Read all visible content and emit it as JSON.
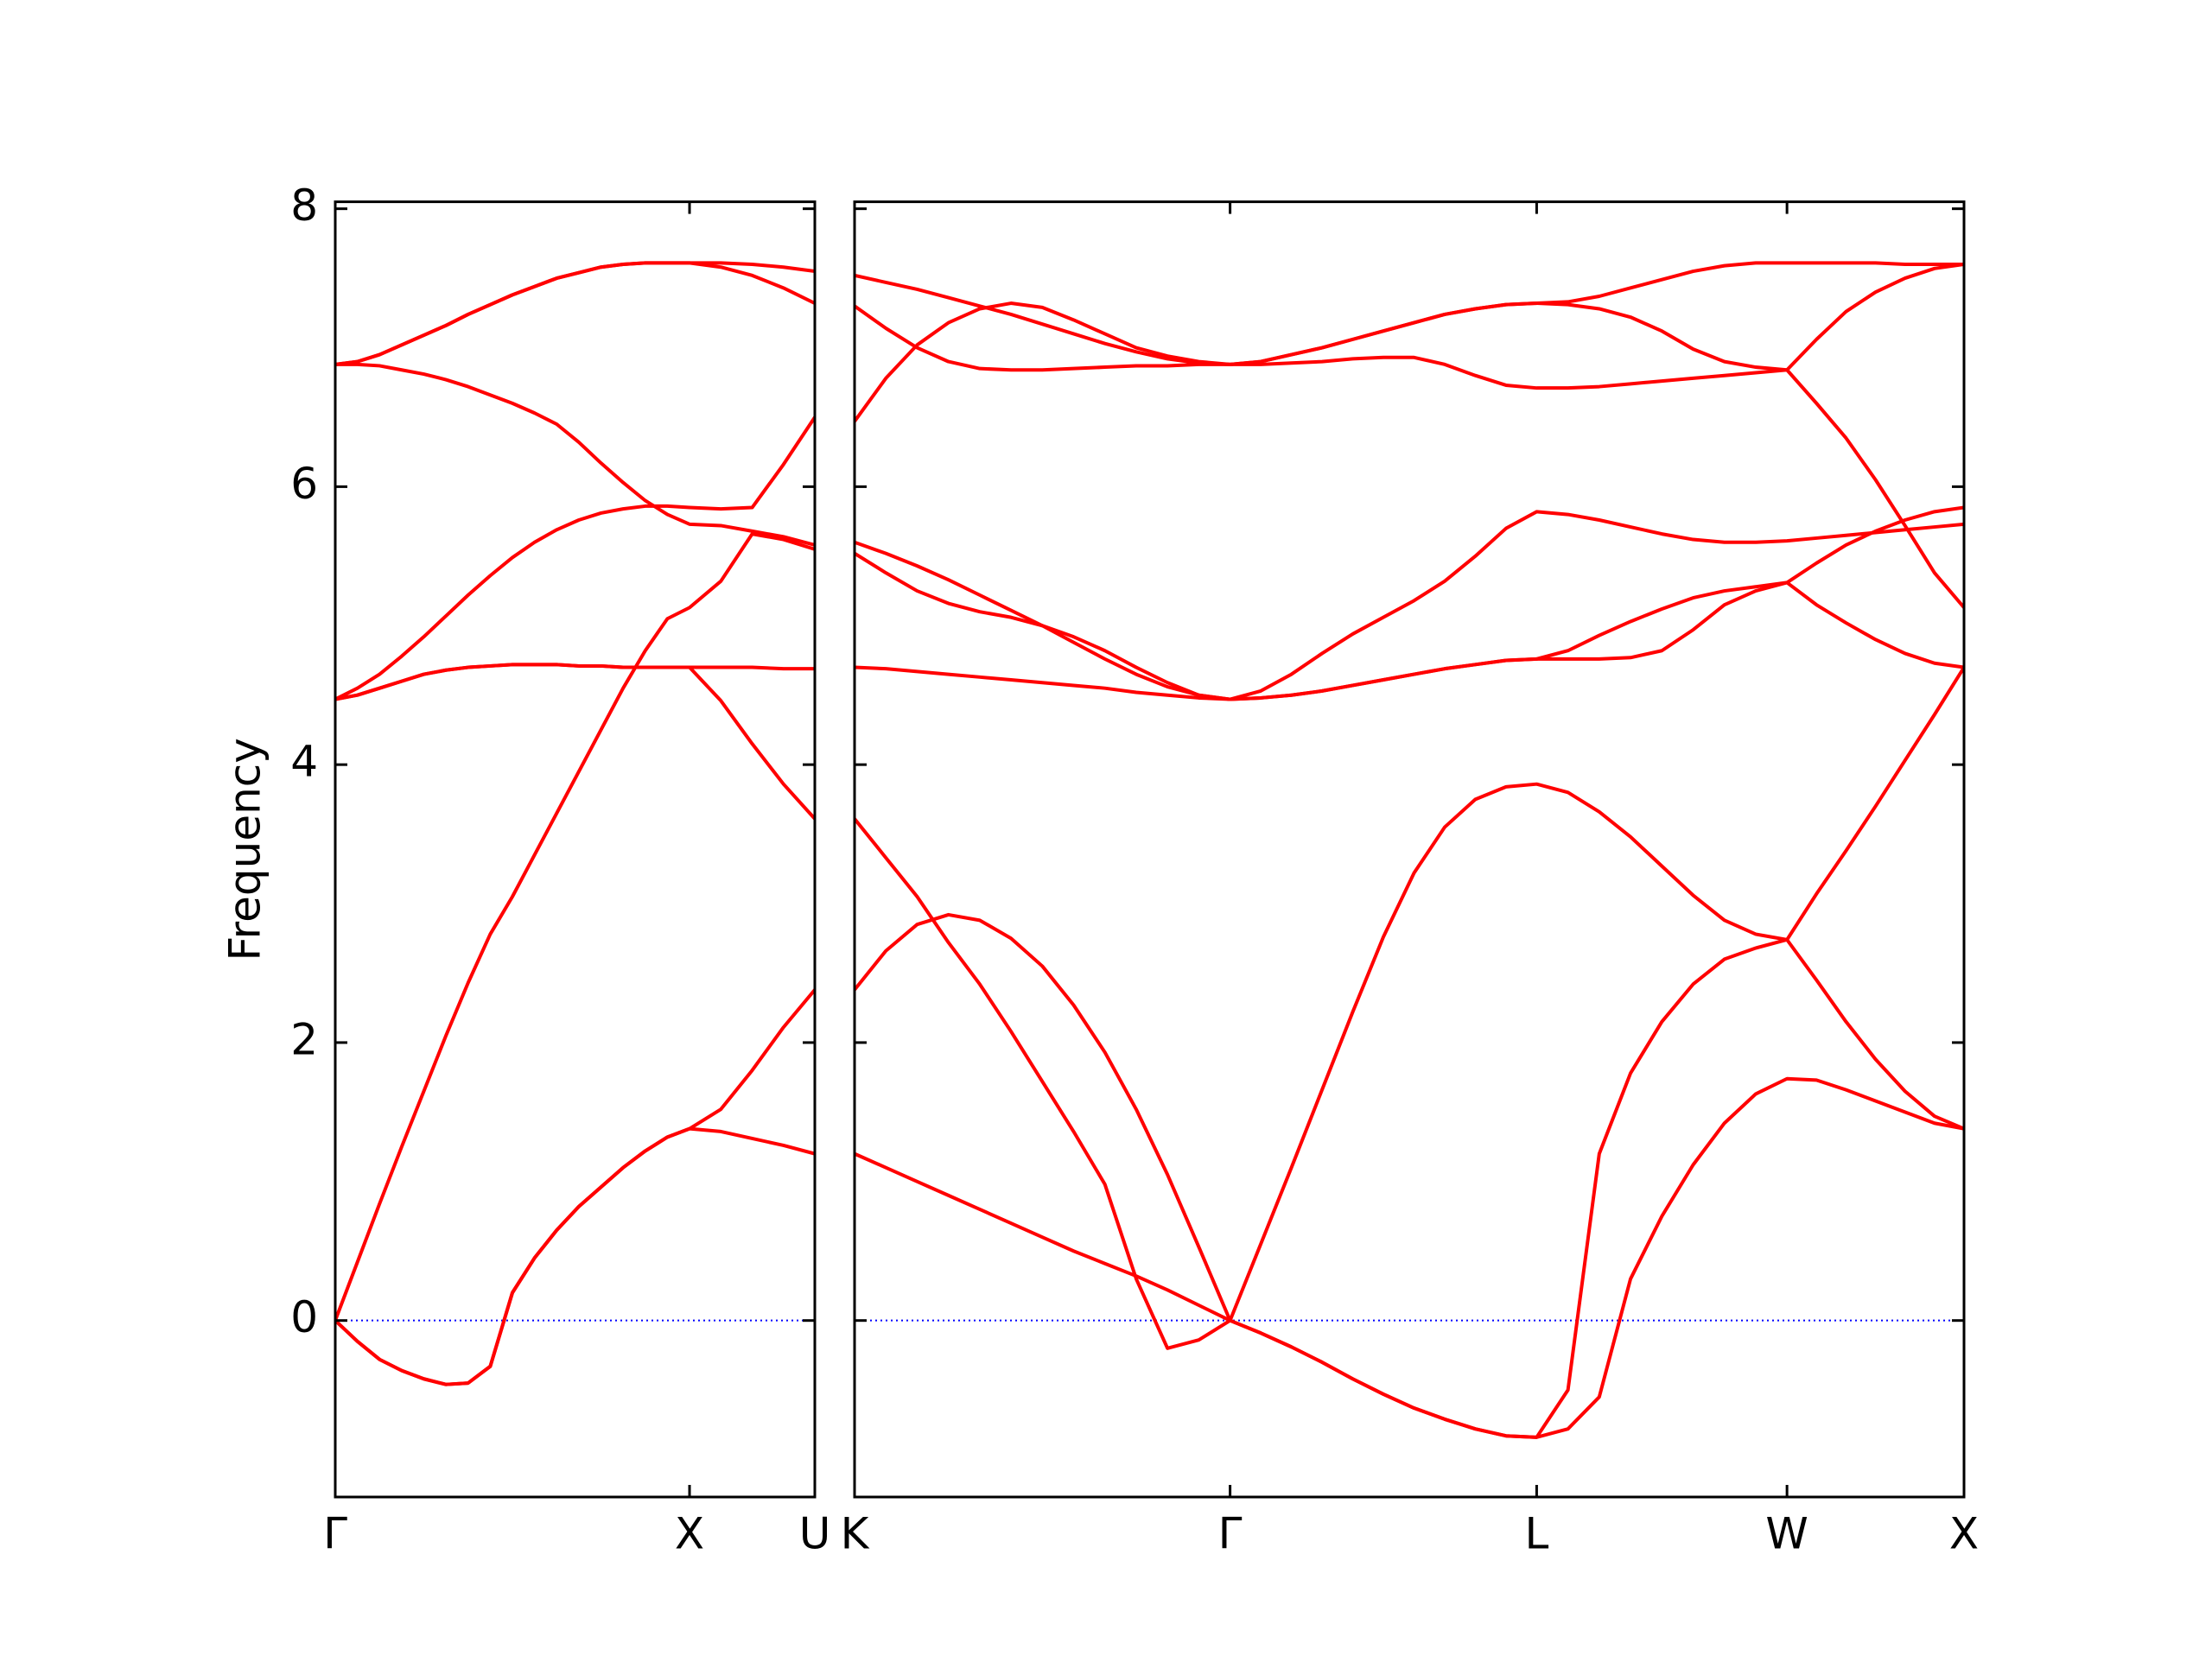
{
  "chart_data": [
    {
      "type": "line",
      "ylabel": "Frequency",
      "color": "#ff0000",
      "xlim": [
        0,
        1.3536
      ],
      "ylim": [
        -1.27,
        8.05
      ],
      "yticks": [
        0,
        2,
        4,
        6,
        8
      ],
      "show_ytick_labels": true,
      "xticks": [
        {
          "value": 0,
          "label": "Γ"
        },
        {
          "value": 1,
          "label": "X"
        },
        {
          "value": 1.3536,
          "label": "U"
        }
      ],
      "hline": {
        "y": 0,
        "color": "#0000ff"
      },
      "x": [
        0,
        0.0625,
        0.125,
        0.1875,
        0.25,
        0.3125,
        0.375,
        0.4375,
        0.5,
        0.5625,
        0.625,
        0.6875,
        0.75,
        0.8125,
        0.875,
        0.9375,
        1,
        1.0884,
        1.1768,
        1.2652,
        1.3536
      ],
      "series": [
        {
          "values": [
            0,
            -0.15,
            -0.28,
            -0.36,
            -0.42,
            -0.46,
            -0.45,
            -0.33,
            0.2,
            0.45,
            0.65,
            0.82,
            0.96,
            1.1,
            1.22,
            1.32,
            1.38,
            1.36,
            1.31,
            1.26,
            1.2
          ]
        },
        {
          "values": [
            0,
            -0.15,
            -0.28,
            -0.36,
            -0.42,
            -0.46,
            -0.45,
            -0.33,
            0.2,
            0.45,
            0.65,
            0.82,
            0.96,
            1.1,
            1.22,
            1.32,
            1.38,
            1.52,
            1.8,
            2.11,
            2.38
          ]
        },
        {
          "values": [
            0,
            0.42,
            0.84,
            1.25,
            1.65,
            2.05,
            2.43,
            2.78,
            3.05,
            3.35,
            3.65,
            3.95,
            4.25,
            4.55,
            4.82,
            5.05,
            5.13,
            5.32,
            5.66,
            5.62,
            5.55
          ]
        },
        {
          "values": [
            4.47,
            4.5,
            4.55,
            4.6,
            4.65,
            4.68,
            4.7,
            4.71,
            4.72,
            4.72,
            4.72,
            4.71,
            4.71,
            4.7,
            4.7,
            4.7,
            4.7,
            4.7,
            4.7,
            4.69,
            4.69
          ]
        },
        {
          "values": [
            4.47,
            4.5,
            4.55,
            4.6,
            4.65,
            4.68,
            4.7,
            4.71,
            4.72,
            4.72,
            4.72,
            4.71,
            4.71,
            4.7,
            4.7,
            4.7,
            4.7,
            4.46,
            4.15,
            3.86,
            3.61
          ]
        },
        {
          "values": [
            4.47,
            4.55,
            4.65,
            4.78,
            4.92,
            5.07,
            5.22,
            5.36,
            5.49,
            5.6,
            5.69,
            5.76,
            5.81,
            5.84,
            5.86,
            5.86,
            5.85,
            5.84,
            5.85,
            6.16,
            6.5
          ]
        },
        {
          "values": [
            6.88,
            6.88,
            6.87,
            6.84,
            6.81,
            6.77,
            6.72,
            6.66,
            6.6,
            6.53,
            6.45,
            6.32,
            6.17,
            6.03,
            5.9,
            5.8,
            5.73,
            5.72,
            5.68,
            5.64,
            5.58
          ]
        },
        {
          "values": [
            6.88,
            6.9,
            6.95,
            7.02,
            7.09,
            7.16,
            7.24,
            7.31,
            7.38,
            7.44,
            7.5,
            7.54,
            7.58,
            7.6,
            7.61,
            7.61,
            7.61,
            7.61,
            7.6,
            7.58,
            7.55
          ]
        },
        {
          "values": [
            6.88,
            6.9,
            6.95,
            7.02,
            7.09,
            7.16,
            7.24,
            7.31,
            7.38,
            7.44,
            7.5,
            7.54,
            7.58,
            7.6,
            7.61,
            7.61,
            7.61,
            7.58,
            7.52,
            7.43,
            7.32
          ]
        }
      ]
    },
    {
      "type": "line",
      "color": "#ff0000",
      "xlim": [
        0,
        3.1338
      ],
      "ylim": [
        -1.27,
        8.05
      ],
      "yticks": [
        0,
        2,
        4,
        6,
        8
      ],
      "show_ytick_labels": false,
      "xticks": [
        {
          "value": 0,
          "label": "K"
        },
        {
          "value": 1.0607,
          "label": "Γ"
        },
        {
          "value": 1.9267,
          "label": "L"
        },
        {
          "value": 2.6338,
          "label": "W"
        },
        {
          "value": 3.1338,
          "label": "X"
        }
      ],
      "hline": {
        "y": 0,
        "color": "#0000ff"
      },
      "x": [
        0,
        0.0884,
        0.1768,
        0.2652,
        0.3536,
        0.4419,
        0.5303,
        0.6187,
        0.7071,
        0.7955,
        0.8839,
        0.9723,
        1.0607,
        1.1473,
        1.2339,
        1.3205,
        1.4071,
        1.4937,
        1.5803,
        1.6669,
        1.7535,
        1.8401,
        1.9267,
        2.0151,
        2.1035,
        2.1919,
        2.2803,
        2.3686,
        2.457,
        2.5454,
        2.6338,
        2.7171,
        2.8005,
        2.8838,
        2.9671,
        3.0505,
        3.1338
      ],
      "series": [
        {
          "values": [
            1.2,
            1.1,
            1.0,
            0.9,
            0.8,
            0.7,
            0.6,
            0.5,
            0.41,
            0.32,
            0.22,
            0.11,
            0,
            -0.09,
            -0.19,
            -0.3,
            -0.42,
            -0.53,
            -0.63,
            -0.71,
            -0.78,
            -0.83,
            -0.84,
            -0.78,
            -0.55,
            0.3,
            0.75,
            1.12,
            1.42,
            1.63,
            1.74,
            1.73,
            1.66,
            1.58,
            1.5,
            1.42,
            1.38
          ]
        },
        {
          "values": [
            3.61,
            3.33,
            3.05,
            2.72,
            2.42,
            2.08,
            1.72,
            1.36,
            0.98,
            0.3,
            -0.2,
            -0.14,
            0,
            -0.09,
            -0.19,
            -0.3,
            -0.42,
            -0.53,
            -0.63,
            -0.71,
            -0.78,
            -0.83,
            -0.84,
            -0.5,
            1.2,
            1.78,
            2.15,
            2.42,
            2.6,
            2.68,
            2.74,
            2.45,
            2.15,
            1.88,
            1.65,
            1.47,
            1.38
          ]
        },
        {
          "values": [
            2.38,
            2.66,
            2.85,
            2.92,
            2.88,
            2.75,
            2.55,
            2.27,
            1.93,
            1.52,
            1.05,
            0.53,
            0,
            0.55,
            1.1,
            1.66,
            2.22,
            2.76,
            3.22,
            3.55,
            3.75,
            3.84,
            3.86,
            3.8,
            3.66,
            3.48,
            3.27,
            3.06,
            2.88,
            2.78,
            2.74,
            3.07,
            3.38,
            3.7,
            4.03,
            4.36,
            4.7
          ]
        },
        {
          "values": [
            4.7,
            4.69,
            4.67,
            4.65,
            4.63,
            4.61,
            4.59,
            4.57,
            4.55,
            4.52,
            4.5,
            4.48,
            4.47,
            4.48,
            4.5,
            4.53,
            4.57,
            4.61,
            4.65,
            4.69,
            4.72,
            4.75,
            4.76,
            4.76,
            4.76,
            4.77,
            4.82,
            4.97,
            5.15,
            5.25,
            5.31,
            5.15,
            5.02,
            4.9,
            4.8,
            4.73,
            4.7
          ]
        },
        {
          "values": [
            5.6,
            5.52,
            5.43,
            5.33,
            5.22,
            5.11,
            5.0,
            4.88,
            4.76,
            4.65,
            4.56,
            4.5,
            4.47,
            4.48,
            4.5,
            4.53,
            4.57,
            4.61,
            4.65,
            4.69,
            4.72,
            4.75,
            4.76,
            4.82,
            4.93,
            5.03,
            5.12,
            5.2,
            5.25,
            5.28,
            5.31,
            5.45,
            5.58,
            5.68,
            5.76,
            5.82,
            5.85
          ]
        },
        {
          "values": [
            5.52,
            5.38,
            5.25,
            5.16,
            5.1,
            5.06,
            5.0,
            4.92,
            4.82,
            4.7,
            4.59,
            4.5,
            4.47,
            4.53,
            4.65,
            4.8,
            4.94,
            5.06,
            5.18,
            5.32,
            5.5,
            5.7,
            5.82,
            5.8,
            5.76,
            5.71,
            5.66,
            5.62,
            5.6,
            5.6,
            5.61,
            5.63,
            5.65,
            5.67,
            5.69,
            5.71,
            5.73
          ]
        },
        {
          "values": [
            6.47,
            6.78,
            7.02,
            7.18,
            7.28,
            7.32,
            7.29,
            7.2,
            7.1,
            7.0,
            6.94,
            6.9,
            6.88,
            6.9,
            6.95,
            7.0,
            7.06,
            7.12,
            7.18,
            7.24,
            7.28,
            7.31,
            7.32,
            7.31,
            7.28,
            7.22,
            7.12,
            6.99,
            6.9,
            6.86,
            6.84,
            7.06,
            7.26,
            7.4,
            7.5,
            7.57,
            7.6
          ]
        },
        {
          "values": [
            7.3,
            7.14,
            7.0,
            6.9,
            6.85,
            6.84,
            6.84,
            6.85,
            6.86,
            6.87,
            6.87,
            6.88,
            6.88,
            6.88,
            6.89,
            6.9,
            6.92,
            6.93,
            6.93,
            6.88,
            6.8,
            6.73,
            6.71,
            6.71,
            6.72,
            6.74,
            6.76,
            6.78,
            6.8,
            6.82,
            6.84,
            6.6,
            6.35,
            6.05,
            5.72,
            5.38,
            5.13
          ]
        },
        {
          "values": [
            7.52,
            7.47,
            7.42,
            7.36,
            7.3,
            7.24,
            7.17,
            7.1,
            7.03,
            6.97,
            6.92,
            6.89,
            6.88,
            6.9,
            6.95,
            7.0,
            7.06,
            7.12,
            7.18,
            7.24,
            7.28,
            7.31,
            7.32,
            7.33,
            7.37,
            7.43,
            7.49,
            7.55,
            7.59,
            7.61,
            7.61,
            7.61,
            7.61,
            7.61,
            7.6,
            7.6,
            7.6
          ]
        }
      ]
    }
  ]
}
